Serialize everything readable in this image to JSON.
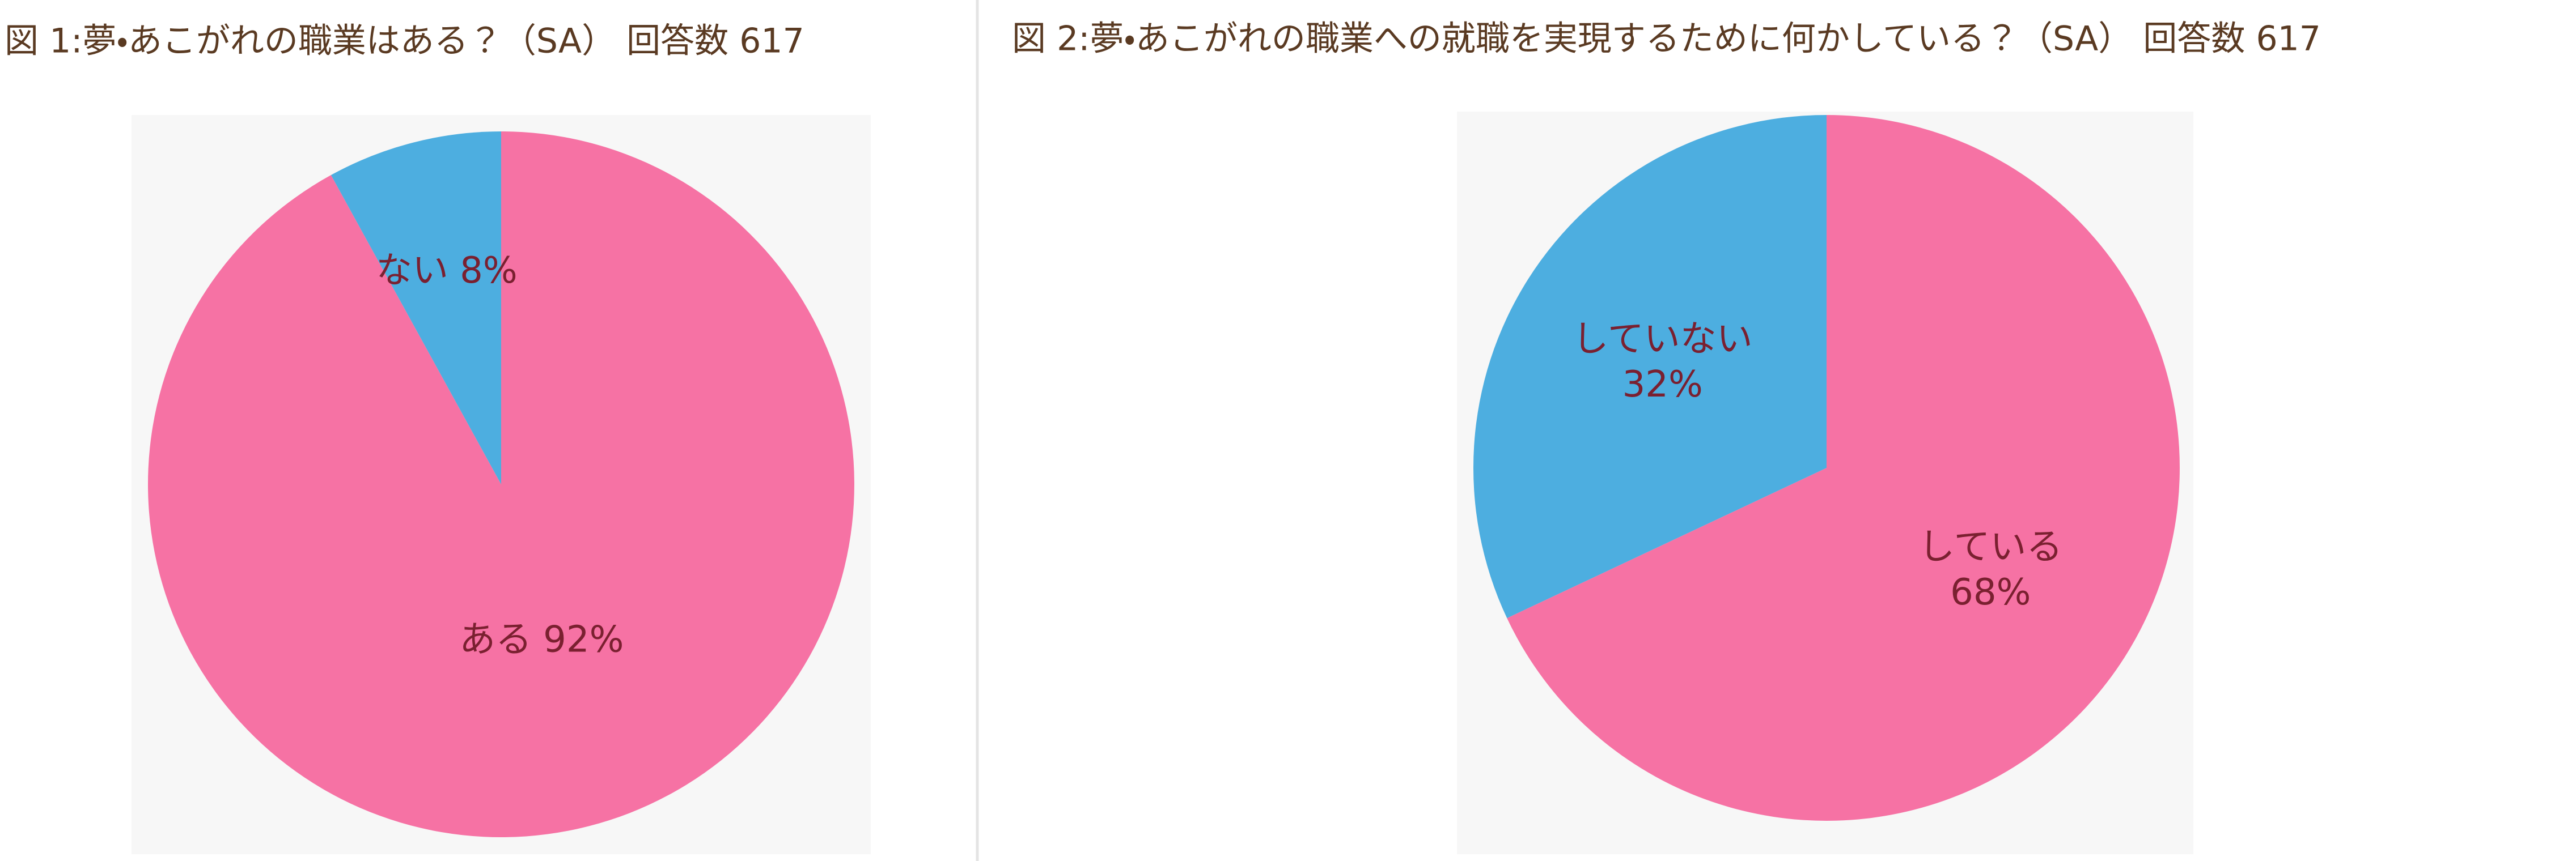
{
  "chart_data": [
    {
      "type": "pie",
      "title": "図 1:夢・あこがれの職業はある？（SA） 回答数 617",
      "categories": [
        "ある",
        "ない"
      ],
      "values": [
        92,
        8
      ],
      "value_labels": [
        "92%",
        "8%"
      ],
      "colors": [
        "#f672a4",
        "#4daee0"
      ]
    },
    {
      "type": "pie",
      "title": "図 2:夢・あこがれの職業への就職を実現するために何かしている？（SA） 回答数 617",
      "categories": [
        "している",
        "していない"
      ],
      "values": [
        68,
        32
      ],
      "value_labels": [
        "68%",
        "32%"
      ],
      "colors": [
        "#f672a4",
        "#4daee0"
      ]
    }
  ]
}
